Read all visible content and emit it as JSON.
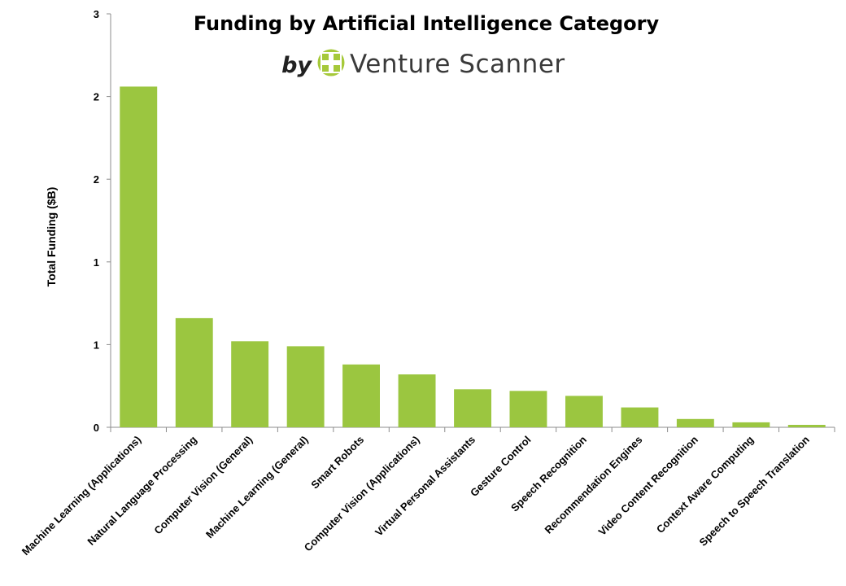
{
  "header": {
    "title": "Funding by Artificial Intelligence Category",
    "by": "by",
    "brand": "Venture Scanner"
  },
  "colors": {
    "bar": "#9bc640",
    "axis": "#8c8c8c",
    "logo": "#a6c93a"
  },
  "icons": {
    "logo": "venture-scanner-logo-icon"
  },
  "chart_data": {
    "type": "bar",
    "ylabel": "Total Funding ($B)",
    "xlabel": "",
    "ylim": [
      0,
      2.5
    ],
    "y_ticks": [
      0,
      0.5,
      1,
      1.5,
      2,
      2.5
    ],
    "y_tick_labels": [
      "0",
      "1",
      "1",
      "2",
      "2",
      "3"
    ],
    "grid": false,
    "categories": [
      "Machine Learning (Applications)",
      "Natural Language Processing",
      "Computer Vision (General)",
      "Machine Learning (General)",
      "Smart Robots",
      "Computer Vision (Applications)",
      "Virtual Personal Assistants",
      "Gesture Control",
      "Speech Recognition",
      "Recommendation Engines",
      "Video Content Recognition",
      "Context Aware Computing",
      "Speech to Speech Translation"
    ],
    "values": [
      2.06,
      0.66,
      0.52,
      0.49,
      0.38,
      0.32,
      0.23,
      0.22,
      0.19,
      0.12,
      0.05,
      0.03,
      0.015
    ]
  }
}
